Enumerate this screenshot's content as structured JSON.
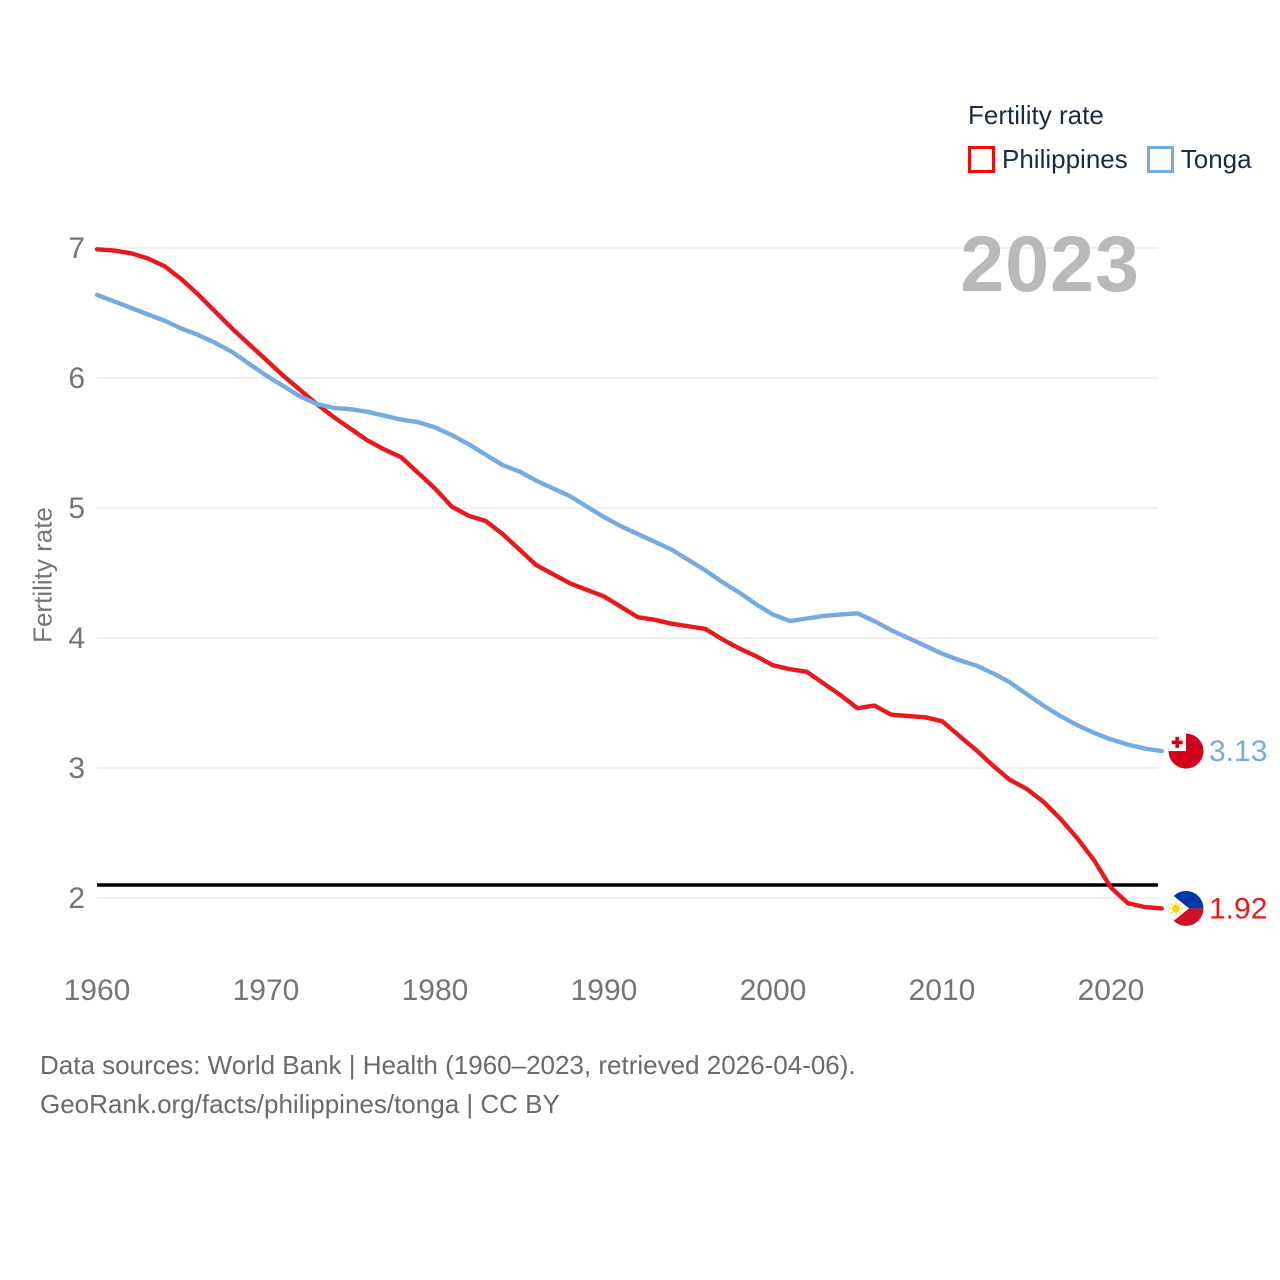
{
  "watermark": "2023",
  "legend": {
    "title": "Fertility rate",
    "items": [
      {
        "label": "Philippines",
        "swatch_border": "#f60909",
        "line_color": "#e8191c"
      },
      {
        "label": "Tonga",
        "swatch_border": "#74abe2",
        "line_color": "#74abe2"
      }
    ]
  },
  "chart_data": {
    "type": "line",
    "title": "Fertility rate",
    "xlabel": "",
    "ylabel": "Fertility rate",
    "xlim": [
      1960,
      2023
    ],
    "ylim": [
      1.9,
      7.0
    ],
    "grid": true,
    "legend_position": "top-right",
    "x_ticks": [
      1960,
      1970,
      1980,
      1990,
      2000,
      2010,
      2020
    ],
    "y_ticks": [
      2,
      3,
      4,
      5,
      6,
      7
    ],
    "reference_line": {
      "value": 2.1,
      "color": "#000000"
    },
    "x_years": [
      1960,
      1961,
      1962,
      1963,
      1964,
      1965,
      1966,
      1967,
      1968,
      1969,
      1970,
      1971,
      1972,
      1973,
      1974,
      1975,
      1976,
      1977,
      1978,
      1979,
      1980,
      1981,
      1982,
      1983,
      1984,
      1985,
      1986,
      1987,
      1988,
      1989,
      1990,
      1991,
      1992,
      1993,
      1994,
      1995,
      1996,
      1997,
      1998,
      1999,
      2000,
      2001,
      2002,
      2003,
      2004,
      2005,
      2006,
      2007,
      2008,
      2009,
      2010,
      2011,
      2012,
      2013,
      2014,
      2015,
      2016,
      2017,
      2018,
      2019,
      2020,
      2021,
      2022,
      2023
    ],
    "series": [
      {
        "name": "Philippines",
        "color": "#e8191c",
        "end_label": "1.92",
        "end_value": 1.92,
        "flag": "philippines",
        "values": [
          6.99,
          6.98,
          6.96,
          6.92,
          6.86,
          6.76,
          6.64,
          6.51,
          6.38,
          6.26,
          6.14,
          6.02,
          5.91,
          5.8,
          5.7,
          5.61,
          5.52,
          5.45,
          5.39,
          5.27,
          5.15,
          5.01,
          4.94,
          4.9,
          4.8,
          4.68,
          4.56,
          4.49,
          4.42,
          4.37,
          4.32,
          4.24,
          4.16,
          4.14,
          4.11,
          4.09,
          4.07,
          3.99,
          3.92,
          3.86,
          3.79,
          3.76,
          3.74,
          3.65,
          3.56,
          3.46,
          3.48,
          3.41,
          3.4,
          3.39,
          3.36,
          3.25,
          3.14,
          3.02,
          2.91,
          2.84,
          2.74,
          2.61,
          2.46,
          2.29,
          2.08,
          1.96,
          1.93,
          1.92
        ]
      },
      {
        "name": "Tonga",
        "color": "#74abe2",
        "end_label": "3.13",
        "end_value": 3.13,
        "flag": "tonga",
        "values": [
          6.64,
          6.59,
          6.54,
          6.49,
          6.44,
          6.38,
          6.33,
          6.27,
          6.2,
          6.11,
          6.02,
          5.94,
          5.86,
          5.8,
          5.77,
          5.76,
          5.74,
          5.71,
          5.68,
          5.66,
          5.62,
          5.56,
          5.49,
          5.41,
          5.33,
          5.28,
          5.21,
          5.15,
          5.09,
          5.01,
          4.93,
          4.86,
          4.8,
          4.74,
          4.68,
          4.6,
          4.52,
          4.43,
          4.35,
          4.26,
          4.18,
          4.13,
          4.15,
          4.17,
          4.18,
          4.19,
          4.13,
          4.06,
          4.0,
          3.94,
          3.88,
          3.83,
          3.79,
          3.73,
          3.66,
          3.57,
          3.48,
          3.4,
          3.33,
          3.27,
          3.22,
          3.18,
          3.15,
          3.13
        ]
      }
    ],
    "flag_colors": {
      "tonga_red": "#d0021b",
      "tonga_white": "#ffffff",
      "ph_blue": "#0038a8",
      "ph_red": "#ce1126",
      "ph_white": "#ffffff",
      "ph_yellow": "#fcd116"
    },
    "style": {
      "grid_color": "#ececec",
      "tick_color": "#757575",
      "axis_title_color": "#767676"
    }
  },
  "footer": {
    "line1": "Data sources: World Bank | Health (1960–2023, retrieved 2026-04-06).",
    "line2": "GeoRank.org/facts/philippines/tonga | CC BY"
  }
}
